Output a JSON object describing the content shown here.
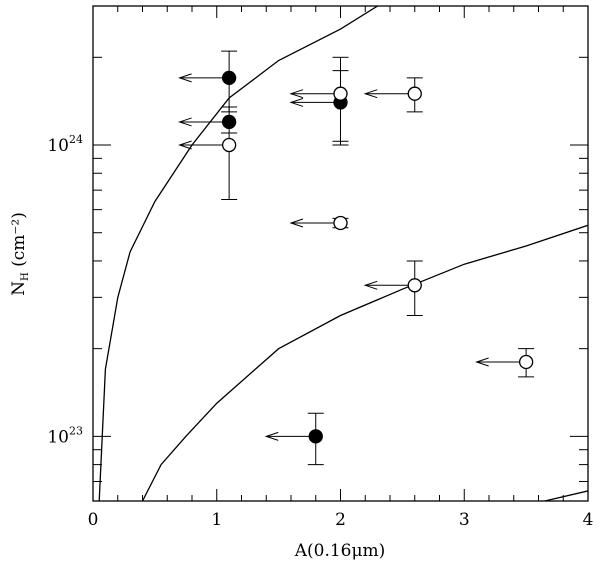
{
  "chart_data": {
    "type": "scatter",
    "title": "",
    "xlabel": "A(0.16μm)",
    "ylabel_main": "N",
    "ylabel_sub": "H",
    "ylabel_units": " (cm⁻²)",
    "xlim": [
      0,
      4
    ],
    "ylim": [
      60000000000000000000000,
      3000000000000000000000000
    ],
    "yscale": "log",
    "grid": false,
    "xticks": [
      {
        "value": 0,
        "label": "0"
      },
      {
        "value": 1,
        "label": "1"
      },
      {
        "value": 2,
        "label": "2"
      },
      {
        "value": 3,
        "label": "3"
      },
      {
        "value": 4,
        "label": "4"
      }
    ],
    "yticks": [
      {
        "base": "10",
        "exp": "23",
        "value": 100000000000000000000000
      },
      {
        "base": "10",
        "exp": "24",
        "value": 1000000000000000000000000
      }
    ],
    "series": [
      {
        "marker": "filled-circle",
        "points": [
          {
            "x": 1.1,
            "y": 1700000000000000000000000,
            "y_lo": 1300000000000000000000000,
            "y_hi": 2100000000000000000000000,
            "x_upper_limit": 0.7
          },
          {
            "x": 1.1,
            "y": 1200000000000000000000000,
            "y_lo": 1100000000000000000000000,
            "y_hi": 1350000000000000000000000,
            "x_upper_limit": 0.7
          },
          {
            "x": 2.0,
            "y": 1400000000000000000000000,
            "y_lo": 1030000000000000000000000,
            "y_hi": 1800000000000000000000000,
            "x_upper_limit": 1.6
          },
          {
            "x": 1.8,
            "y": 100000000000000000000000,
            "y_lo": 80000000000000000000000,
            "y_hi": 120000000000000000000000,
            "x_upper_limit": 1.4
          }
        ]
      },
      {
        "marker": "open-circle",
        "points": [
          {
            "x": 1.1,
            "y": 1000000000000000000000000,
            "y_lo": 650000000000000000000000,
            "y_hi": 1100000000000000000000000,
            "x_upper_limit": 0.7
          },
          {
            "x": 2.0,
            "y": 1500000000000000000000000,
            "y_lo": 1000000000000000000000000,
            "y_hi": 2000000000000000000000000,
            "x_upper_limit": 1.6
          },
          {
            "x": 2.6,
            "y": 1500000000000000000000000,
            "y_lo": 1300000000000000000000000,
            "y_hi": 1700000000000000000000000,
            "x_upper_limit": 2.2
          },
          {
            "x": 2.0,
            "y": 540000000000000000000000,
            "y_lo": 520000000000000000000000,
            "y_hi": 560000000000000000000000,
            "x_upper_limit": 1.6
          },
          {
            "x": 2.6,
            "y": 330000000000000000000000,
            "y_lo": 260000000000000000000000,
            "y_hi": 400000000000000000000000,
            "x_upper_limit": 2.2
          },
          {
            "x": 3.5,
            "y": 180000000000000000000000,
            "y_lo": 160000000000000000000000,
            "y_hi": 200000000000000000000000,
            "x_upper_limit": 3.1
          }
        ]
      }
    ],
    "curves": [
      {
        "points": [
          [
            0.05,
            60000000000000000000000
          ],
          [
            0.1,
            170000000000000000000000
          ],
          [
            0.2,
            300000000000000000000000
          ],
          [
            0.3,
            430000000000000000000000
          ],
          [
            0.5,
            640000000000000000000000
          ],
          [
            0.8,
            1000000000000000000000000
          ],
          [
            1.1,
            1450000000000000000000000
          ],
          [
            1.5,
            1950000000000000000000000
          ],
          [
            2.0,
            2500000000000000000000000
          ],
          [
            2.3,
            3000000000000000000000000
          ]
        ]
      },
      {
        "points": [
          [
            0.4,
            60000000000000000000000
          ],
          [
            0.55,
            80000000000000000000000
          ],
          [
            0.75,
            100000000000000000000000
          ],
          [
            1.0,
            130000000000000000000000
          ],
          [
            1.5,
            200000000000000000000000
          ],
          [
            2.0,
            260000000000000000000000
          ],
          [
            2.5,
            320000000000000000000000
          ],
          [
            3.0,
            390000000000000000000000
          ],
          [
            3.5,
            450000000000000000000000
          ],
          [
            4.0,
            530000000000000000000000
          ]
        ]
      },
      {
        "points": [
          [
            3.65,
            60000000000000000000000
          ],
          [
            4.0,
            65000000000000000000000
          ]
        ]
      }
    ]
  }
}
